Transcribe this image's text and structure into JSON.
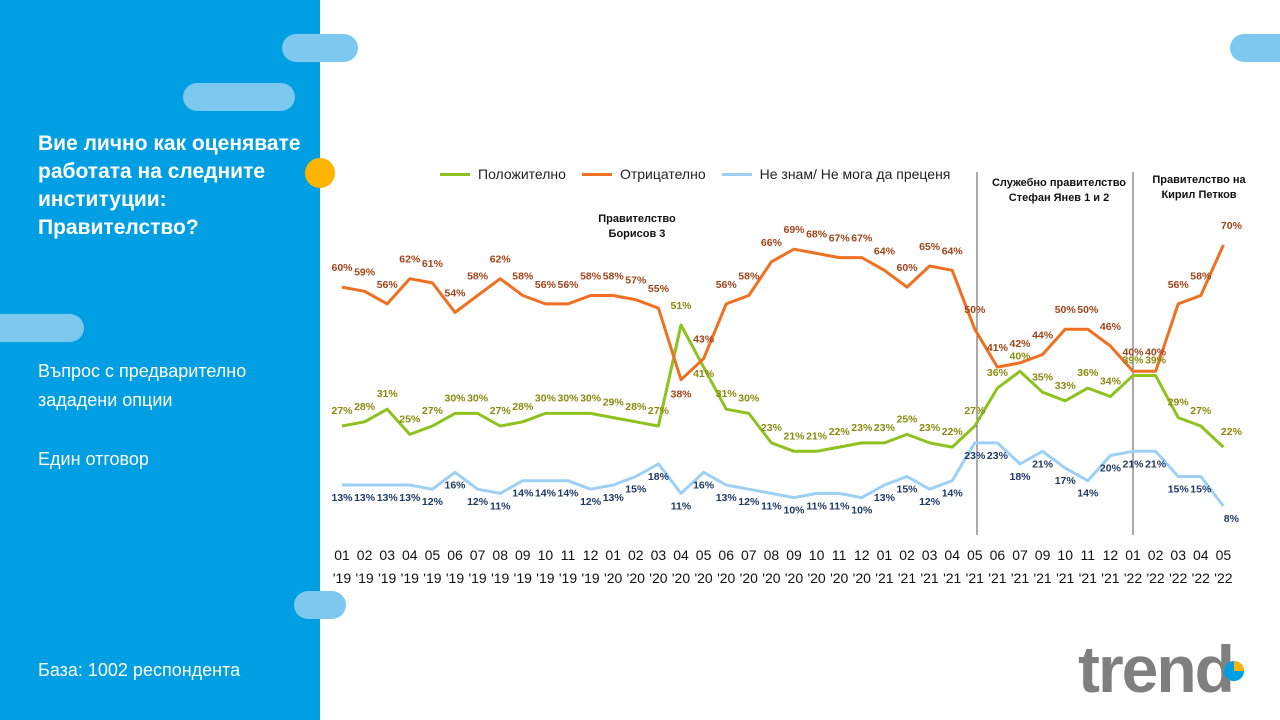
{
  "sidebar": {
    "question": "Вие лично как оценявате работата на следните институции: Правителство?",
    "note1": "Въпрос с предварително зададени опции",
    "note2": "Един отговор",
    "base": "База:  1002 респондента"
  },
  "logo": {
    "text": "trend"
  },
  "colors": {
    "positive": "#8dc21f",
    "negative": "#f07021",
    "dontknow": "#9dd0f5",
    "sidebar": "#009fe3",
    "accent": "#ffb400"
  },
  "chart_data": {
    "type": "line",
    "title": "",
    "xlabel": "",
    "ylabel": "",
    "legend": "top",
    "grid": false,
    "ylim": [
      0,
      80
    ],
    "categories": [
      {
        "m": "01",
        "y": "'19"
      },
      {
        "m": "02",
        "y": "'19"
      },
      {
        "m": "03",
        "y": "'19"
      },
      {
        "m": "04",
        "y": "'19"
      },
      {
        "m": "05",
        "y": "'19"
      },
      {
        "m": "06",
        "y": "'19"
      },
      {
        "m": "07",
        "y": "'19"
      },
      {
        "m": "08",
        "y": "'19"
      },
      {
        "m": "09",
        "y": "'19"
      },
      {
        "m": "10",
        "y": "'19"
      },
      {
        "m": "11",
        "y": "'19"
      },
      {
        "m": "12",
        "y": "'19"
      },
      {
        "m": "01",
        "y": "'20"
      },
      {
        "m": "02",
        "y": "'20"
      },
      {
        "m": "03",
        "y": "'20"
      },
      {
        "m": "04",
        "y": "'20"
      },
      {
        "m": "05",
        "y": "'20"
      },
      {
        "m": "06",
        "y": "'20"
      },
      {
        "m": "07",
        "y": "'20"
      },
      {
        "m": "08",
        "y": "'20"
      },
      {
        "m": "09",
        "y": "'20"
      },
      {
        "m": "10",
        "y": "'20"
      },
      {
        "m": "11",
        "y": "'20"
      },
      {
        "m": "12",
        "y": "'20"
      },
      {
        "m": "01",
        "y": "'21"
      },
      {
        "m": "02",
        "y": "'21"
      },
      {
        "m": "03",
        "y": "'21"
      },
      {
        "m": "04",
        "y": "'21"
      },
      {
        "m": "05",
        "y": "'21"
      },
      {
        "m": "06",
        "y": "'21"
      },
      {
        "m": "07",
        "y": "'21"
      },
      {
        "m": "09",
        "y": "'21"
      },
      {
        "m": "10",
        "y": "'21"
      },
      {
        "m": "11",
        "y": "'21"
      },
      {
        "m": "12",
        "y": "'21"
      },
      {
        "m": "01",
        "y": "'22"
      },
      {
        "m": "02",
        "y": "'22"
      },
      {
        "m": "03",
        "y": "'22"
      },
      {
        "m": "04",
        "y": "'22"
      },
      {
        "m": "05",
        "y": "'22"
      }
    ],
    "series": [
      {
        "name": "Положително",
        "key": "positive",
        "values": [
          27,
          28,
          31,
          25,
          27,
          30,
          30,
          27,
          28,
          30,
          30,
          30,
          29,
          28,
          27,
          51,
          41,
          31,
          30,
          23,
          21,
          21,
          22,
          23,
          23,
          25,
          23,
          22,
          27,
          36,
          40,
          35,
          33,
          36,
          34,
          39,
          39,
          29,
          27,
          22
        ]
      },
      {
        "name": "Отрицателно",
        "key": "negative",
        "values": [
          60,
          59,
          56,
          62,
          61,
          54,
          58,
          62,
          58,
          56,
          56,
          58,
          58,
          57,
          55,
          38,
          43,
          56,
          58,
          66,
          69,
          68,
          67,
          67,
          64,
          60,
          65,
          64,
          50,
          41,
          42,
          44,
          50,
          50,
          46,
          40,
          40,
          56,
          58,
          70
        ]
      },
      {
        "name": "Не знам/ Не мога да преценя",
        "key": "dontknow",
        "values": [
          13,
          13,
          13,
          13,
          12,
          16,
          12,
          11,
          14,
          14,
          14,
          12,
          13,
          15,
          18,
          11,
          16,
          13,
          12,
          11,
          10,
          11,
          11,
          10,
          13,
          15,
          12,
          14,
          23,
          23,
          18,
          21,
          17,
          14,
          20,
          21,
          21,
          15,
          15,
          8
        ]
      }
    ],
    "annotations": [
      {
        "text1": "Правителство",
        "text2": "Борисов  3"
      },
      {
        "text1": "Служебно правителство",
        "text2": "Стефан Янев  1 и 2"
      },
      {
        "text1": "Правителство  на",
        "text2": "Кирил  Петков"
      }
    ]
  }
}
